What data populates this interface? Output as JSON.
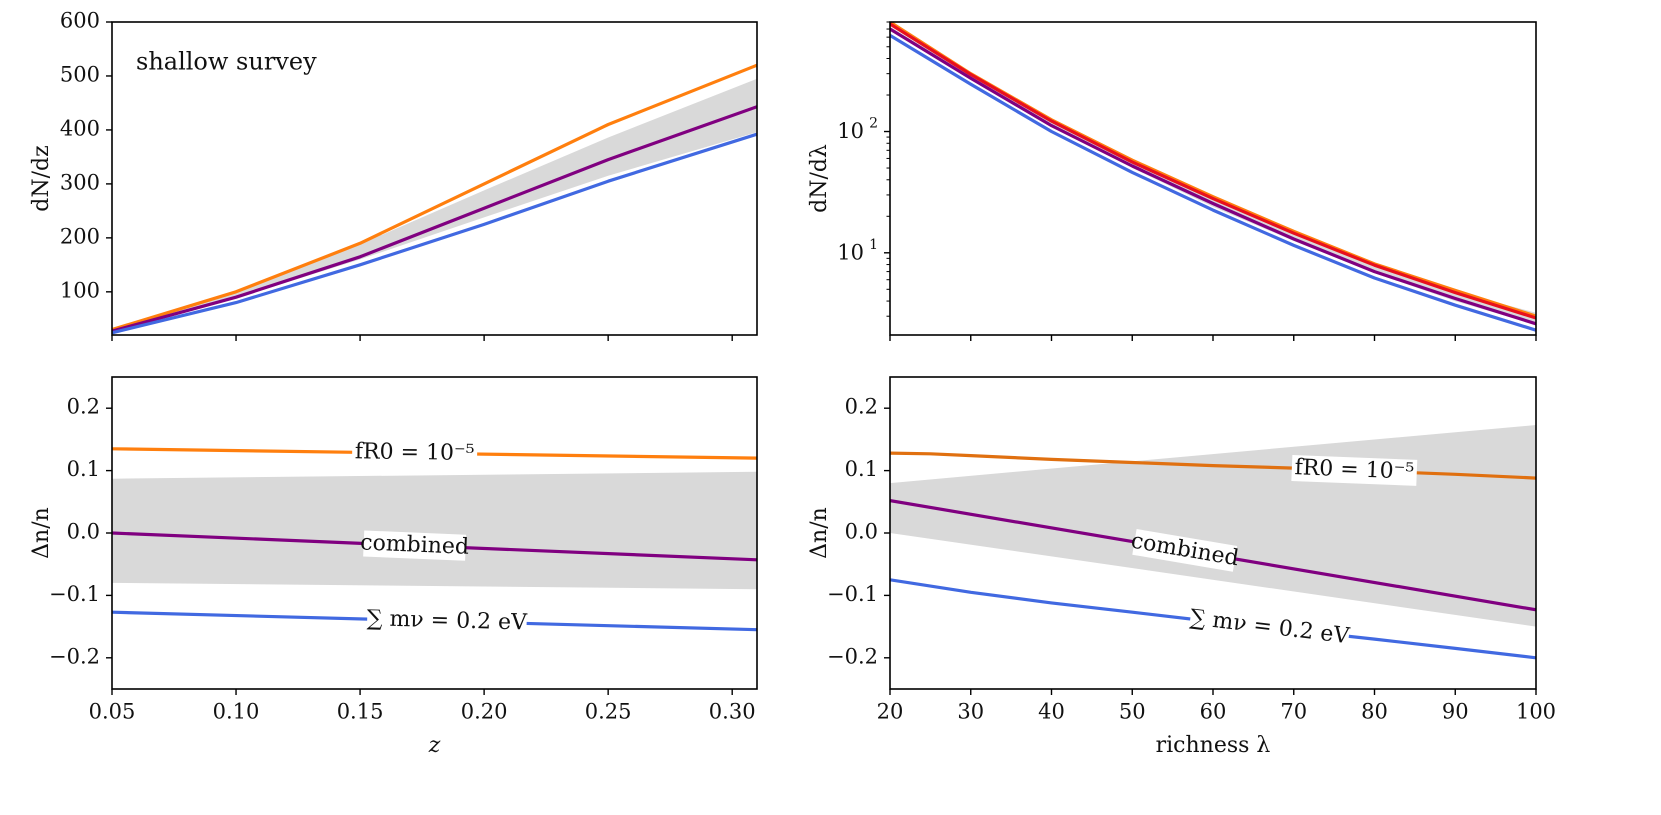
{
  "chart_data": [
    {
      "id": "top_left",
      "type": "line",
      "annotation": "shallow survey",
      "xlabel": "z",
      "ylabel": "dN/dz",
      "xlim": [
        0.05,
        0.31
      ],
      "ylim": [
        20,
        600
      ],
      "xticks": [
        0.05,
        0.1,
        0.15,
        0.2,
        0.25,
        0.3
      ],
      "xtick_labels": [
        "",
        "",
        "",
        "",
        "",
        ""
      ],
      "yticks": [
        100,
        200,
        300,
        400,
        500,
        600
      ],
      "ytick_labels": [
        "100",
        "200",
        "300",
        "400",
        "500",
        "600"
      ],
      "band": {
        "x": [
          0.05,
          0.1,
          0.15,
          0.2,
          0.25,
          0.31
        ],
        "lower": [
          27,
          88,
          160,
          238,
          315,
          396
        ],
        "upper": [
          31,
          98,
          188,
          288,
          386,
          495
        ]
      },
      "series": [
        {
          "name": "f_R0 = 10^-5",
          "color": "#ff7f0e",
          "x": [
            0.05,
            0.1,
            0.15,
            0.2,
            0.25,
            0.31
          ],
          "values": [
            30,
            100,
            190,
            300,
            410,
            520
          ]
        },
        {
          "name": "combined",
          "color": "#800080",
          "x": [
            0.05,
            0.1,
            0.15,
            0.2,
            0.25,
            0.31
          ],
          "values": [
            27,
            90,
            165,
            255,
            345,
            443
          ]
        },
        {
          "name": "sum m_nu = 0.2 eV",
          "color": "#4169e1",
          "x": [
            0.05,
            0.1,
            0.15,
            0.2,
            0.25,
            0.31
          ],
          "values": [
            24,
            80,
            150,
            225,
            305,
            392
          ]
        }
      ]
    },
    {
      "id": "top_right",
      "type": "line",
      "yscale": "log",
      "xlabel": "",
      "ylabel": "dN/dλ",
      "xlim": [
        20,
        100
      ],
      "ylim": [
        2.1,
        800
      ],
      "xticks": [
        20,
        30,
        40,
        50,
        60,
        70,
        80,
        90,
        100
      ],
      "xtick_labels": [
        "",
        "",
        "",
        "",
        "",
        "",
        "",
        "",
        ""
      ],
      "yticks": [
        10,
        100
      ],
      "ytick_labels": [
        "10^1",
        "10^2"
      ],
      "band": {
        "x": [
          20,
          30,
          40,
          50,
          60,
          70,
          80,
          90,
          100
        ],
        "lower": [
          680,
          270,
          110,
          50,
          24,
          12.5,
          6.8,
          4.0,
          2.55
        ],
        "upper": [
          730,
          290,
          120,
          57,
          28,
          14.5,
          8.0,
          4.8,
          3.2
        ]
      },
      "series": [
        {
          "name": "f_R0 = 10^-5",
          "color": "#ff7f0e",
          "x": [
            20,
            30,
            40,
            50,
            60,
            70,
            80,
            90,
            100
          ],
          "values": [
            800,
            300,
            125,
            58,
            29,
            15,
            8.1,
            4.9,
            3.0
          ]
        },
        {
          "name": "red",
          "color": "#e8101e",
          "x": [
            20,
            30,
            40,
            50,
            60,
            70,
            80,
            90,
            100
          ],
          "values": [
            770,
            295,
            122,
            56,
            28,
            14.5,
            7.9,
            4.7,
            2.9
          ]
        },
        {
          "name": "combined",
          "color": "#800080",
          "x": [
            20,
            30,
            40,
            50,
            60,
            70,
            80,
            90,
            100
          ],
          "values": [
            700,
            275,
            112,
            52,
            25.5,
            13,
            7.0,
            4.2,
            2.6
          ]
        },
        {
          "name": "sum m_nu = 0.2 eV",
          "color": "#4169e1",
          "x": [
            20,
            30,
            40,
            50,
            60,
            70,
            80,
            90,
            100
          ],
          "values": [
            620,
            245,
            100,
            46,
            22.5,
            11.5,
            6.2,
            3.7,
            2.3
          ]
        }
      ]
    },
    {
      "id": "bottom_left",
      "type": "line",
      "xlabel": "z",
      "ylabel": "Δn/n",
      "xlim": [
        0.05,
        0.31
      ],
      "ylim": [
        -0.25,
        0.25
      ],
      "xticks": [
        0.05,
        0.1,
        0.15,
        0.2,
        0.25,
        0.3
      ],
      "xtick_labels": [
        "0.05",
        "0.10",
        "0.15",
        "0.20",
        "0.25",
        "0.30"
      ],
      "yticks": [
        -0.2,
        -0.1,
        0.0,
        0.1,
        0.2
      ],
      "ytick_labels": [
        "−0.2",
        "−0.1",
        "0.0",
        "0.1",
        "0.2"
      ],
      "band": {
        "x": [
          0.05,
          0.31
        ],
        "lower": [
          -0.08,
          -0.09
        ],
        "upper": [
          0.087,
          0.098
        ]
      },
      "series": [
        {
          "name": "f_R0 = 10^-5",
          "label": "fR0 = 10⁻⁵",
          "color": "#ff7f0e",
          "x": [
            0.05,
            0.31
          ],
          "values": [
            0.135,
            0.12
          ],
          "label_x": 0.172
        },
        {
          "name": "combined",
          "label": "combined",
          "color": "#800080",
          "x": [
            0.05,
            0.31
          ],
          "values": [
            0.0,
            -0.043
          ],
          "label_x": 0.172
        },
        {
          "name": "sum m_nu = 0.2 eV",
          "label": "∑ mν = 0.2 eV",
          "color": "#4169e1",
          "x": [
            0.05,
            0.31
          ],
          "values": [
            -0.127,
            -0.155
          ],
          "label_x": 0.185
        }
      ]
    },
    {
      "id": "bottom_right",
      "type": "line",
      "xlabel": "richness λ",
      "ylabel": "Δn/n",
      "xlim": [
        20,
        100
      ],
      "ylim": [
        -0.25,
        0.25
      ],
      "xticks": [
        20,
        30,
        40,
        50,
        60,
        70,
        80,
        90,
        100
      ],
      "xtick_labels": [
        "20",
        "30",
        "40",
        "50",
        "60",
        "70",
        "80",
        "90",
        "100"
      ],
      "yticks": [
        -0.2,
        -0.1,
        0.0,
        0.1,
        0.2
      ],
      "ytick_labels": [
        "−0.2",
        "−0.1",
        "0.0",
        "0.1",
        "0.2"
      ],
      "band": {
        "x": [
          20,
          100
        ],
        "lower": [
          0.0,
          -0.15
        ],
        "upper": [
          0.08,
          0.173
        ]
      },
      "series": [
        {
          "name": "f_R0 = 10^-5",
          "label": "fR0 = 10⁻⁵",
          "color": "#e07010",
          "x": [
            20,
            25,
            30,
            40,
            50,
            60,
            70,
            80,
            90,
            100
          ],
          "values": [
            0.128,
            0.127,
            0.124,
            0.118,
            0.113,
            0.108,
            0.104,
            0.099,
            0.094,
            0.088
          ],
          "label_x": 77.5
        },
        {
          "name": "combined",
          "label": "combined",
          "color": "#800080",
          "x": [
            20,
            100
          ],
          "values": [
            0.052,
            -0.123
          ],
          "label_x": 56.5
        },
        {
          "name": "sum m_nu = 0.2 eV",
          "label": "∑ mν = 0.2 eV",
          "color": "#4169e1",
          "x": [
            20,
            30,
            40,
            50,
            60,
            70,
            80,
            90,
            100
          ],
          "values": [
            -0.075,
            -0.095,
            -0.112,
            -0.127,
            -0.142,
            -0.156,
            -0.17,
            -0.185,
            -0.2
          ],
          "label_x": 67
        }
      ]
    }
  ]
}
